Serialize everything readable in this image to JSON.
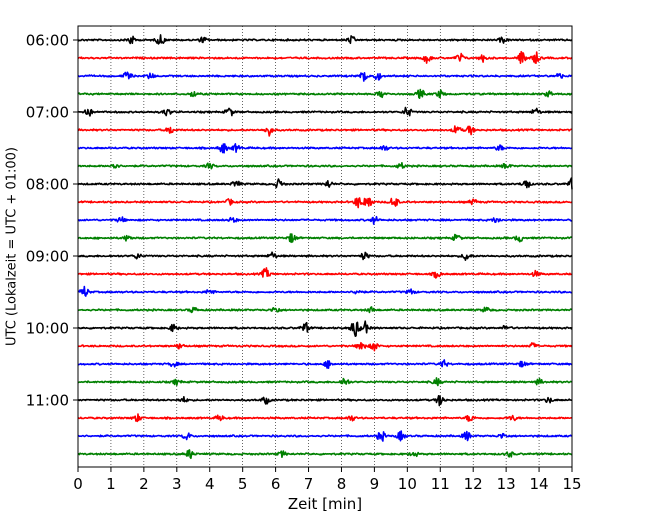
{
  "chart_data": {
    "type": "line",
    "title": "",
    "xlabel": "Zeit  [min]",
    "ylabel": "UTC (Lokalzeit = UTC + 01:00)",
    "xlim": [
      0,
      15
    ],
    "xticks": [
      0,
      1,
      2,
      3,
      4,
      5,
      6,
      7,
      8,
      9,
      10,
      11,
      12,
      13,
      14,
      15
    ],
    "xtick_labels": [
      "0",
      "1",
      "2",
      "3",
      "4",
      "5",
      "6",
      "7",
      "8",
      "9",
      "10",
      "11",
      "12",
      "13",
      "14",
      "15"
    ],
    "ytick_labels": [
      "06:00",
      "07:00",
      "08:00",
      "09:00",
      "10:00",
      "11:00"
    ],
    "ytick_rows": [
      0,
      4,
      8,
      12,
      16,
      20
    ],
    "row_minutes": 15,
    "start_time": "06:00",
    "grid": "vertical-dotted",
    "colors": [
      "#000000",
      "#ff0000",
      "#0000ff",
      "#008000"
    ],
    "traces": [
      {
        "start": "06:00",
        "color": "#000000",
        "events": [
          [
            1.6,
            0.5
          ],
          [
            2.5,
            0.6
          ],
          [
            3.8,
            0.3
          ],
          [
            8.3,
            0.4
          ],
          [
            12.9,
            0.3
          ]
        ]
      },
      {
        "start": "06:15",
        "color": "#ff0000",
        "events": [
          [
            10.6,
            0.5
          ],
          [
            11.6,
            0.5
          ],
          [
            12.3,
            0.4
          ],
          [
            13.5,
            0.8
          ],
          [
            13.9,
            0.6
          ]
        ]
      },
      {
        "start": "06:30",
        "color": "#0000ff",
        "events": [
          [
            1.5,
            0.5
          ],
          [
            2.2,
            0.3
          ],
          [
            8.7,
            0.7
          ],
          [
            9.1,
            0.4
          ],
          [
            14.6,
            0.3
          ]
        ]
      },
      {
        "start": "06:45",
        "color": "#008000",
        "events": [
          [
            3.5,
            0.3
          ],
          [
            9.2,
            0.4
          ],
          [
            10.4,
            0.5
          ],
          [
            11.0,
            0.4
          ],
          [
            14.3,
            0.3
          ]
        ]
      },
      {
        "start": "07:00",
        "color": "#000000",
        "events": [
          [
            0.3,
            0.5
          ],
          [
            2.7,
            0.4
          ],
          [
            4.6,
            0.5
          ],
          [
            10.0,
            0.6
          ],
          [
            13.9,
            0.4
          ]
        ]
      },
      {
        "start": "07:15",
        "color": "#ff0000",
        "events": [
          [
            2.8,
            0.4
          ],
          [
            5.8,
            0.6
          ],
          [
            11.5,
            0.5
          ],
          [
            11.9,
            0.5
          ]
        ]
      },
      {
        "start": "07:30",
        "color": "#0000ff",
        "events": [
          [
            4.4,
            0.6
          ],
          [
            4.8,
            0.4
          ],
          [
            9.3,
            0.3
          ],
          [
            12.8,
            0.3
          ]
        ]
      },
      {
        "start": "07:45",
        "color": "#008000",
        "events": [
          [
            1.1,
            0.4
          ],
          [
            4.0,
            0.3
          ],
          [
            9.8,
            0.3
          ],
          [
            13.0,
            0.3
          ]
        ]
      },
      {
        "start": "08:00",
        "color": "#000000",
        "events": [
          [
            4.8,
            0.4
          ],
          [
            6.1,
            0.5
          ],
          [
            7.6,
            0.4
          ],
          [
            13.6,
            0.6
          ],
          [
            15.0,
            0.6
          ]
        ]
      },
      {
        "start": "08:15",
        "color": "#ff0000",
        "events": [
          [
            4.6,
            0.3
          ],
          [
            8.5,
            0.6
          ],
          [
            8.8,
            0.9
          ],
          [
            9.6,
            0.7
          ],
          [
            12.0,
            0.3
          ]
        ]
      },
      {
        "start": "08:30",
        "color": "#0000ff",
        "events": [
          [
            1.3,
            0.3
          ],
          [
            4.7,
            0.3
          ],
          [
            9.0,
            0.4
          ],
          [
            12.7,
            0.3
          ]
        ]
      },
      {
        "start": "08:45",
        "color": "#008000",
        "events": [
          [
            1.5,
            0.3
          ],
          [
            6.5,
            0.5
          ],
          [
            11.5,
            0.4
          ],
          [
            13.4,
            0.4
          ]
        ]
      },
      {
        "start": "09:00",
        "color": "#000000",
        "events": [
          [
            1.8,
            0.3
          ],
          [
            5.9,
            0.4
          ],
          [
            8.7,
            0.4
          ],
          [
            11.8,
            0.5
          ]
        ]
      },
      {
        "start": "09:15",
        "color": "#ff0000",
        "events": [
          [
            5.7,
            0.6
          ],
          [
            10.9,
            0.4
          ],
          [
            13.9,
            0.3
          ]
        ]
      },
      {
        "start": "09:30",
        "color": "#0000ff",
        "events": [
          [
            0.2,
            0.6
          ],
          [
            4.0,
            0.3
          ],
          [
            8.5,
            0.3
          ],
          [
            10.1,
            0.3
          ]
        ]
      },
      {
        "start": "09:45",
        "color": "#008000",
        "events": [
          [
            3.5,
            0.3
          ],
          [
            6.0,
            0.4
          ],
          [
            8.9,
            0.3
          ],
          [
            12.4,
            0.3
          ]
        ]
      },
      {
        "start": "10:00",
        "color": "#000000",
        "events": [
          [
            2.9,
            0.4
          ],
          [
            6.9,
            0.6
          ],
          [
            8.4,
            1.0
          ],
          [
            8.7,
            0.7
          ],
          [
            13.0,
            0.3
          ]
        ]
      },
      {
        "start": "10:15",
        "color": "#ff0000",
        "events": [
          [
            3.1,
            0.3
          ],
          [
            8.6,
            0.6
          ],
          [
            9.0,
            0.5
          ],
          [
            13.8,
            0.3
          ]
        ]
      },
      {
        "start": "10:30",
        "color": "#0000ff",
        "events": [
          [
            2.9,
            0.3
          ],
          [
            7.6,
            0.4
          ],
          [
            11.1,
            0.4
          ],
          [
            13.5,
            0.3
          ]
        ]
      },
      {
        "start": "10:45",
        "color": "#008000",
        "events": [
          [
            3.0,
            0.3
          ],
          [
            8.1,
            0.5
          ],
          [
            10.9,
            0.4
          ],
          [
            14.0,
            0.3
          ]
        ]
      },
      {
        "start": "11:00",
        "color": "#000000",
        "events": [
          [
            3.2,
            0.3
          ],
          [
            5.7,
            0.4
          ],
          [
            11.0,
            0.6
          ],
          [
            14.3,
            0.3
          ]
        ]
      },
      {
        "start": "11:15",
        "color": "#ff0000",
        "events": [
          [
            1.8,
            0.4
          ],
          [
            4.3,
            0.3
          ],
          [
            8.3,
            0.3
          ],
          [
            11.9,
            0.4
          ],
          [
            13.2,
            0.3
          ]
        ]
      },
      {
        "start": "11:30",
        "color": "#0000ff",
        "events": [
          [
            3.3,
            0.4
          ],
          [
            9.2,
            0.6
          ],
          [
            9.8,
            0.5
          ],
          [
            11.8,
            0.5
          ],
          [
            12.9,
            0.3
          ]
        ]
      },
      {
        "start": "11:45",
        "color": "#008000",
        "events": [
          [
            3.4,
            0.5
          ],
          [
            6.2,
            0.3
          ],
          [
            10.2,
            0.3
          ],
          [
            13.1,
            0.3
          ]
        ]
      }
    ]
  }
}
